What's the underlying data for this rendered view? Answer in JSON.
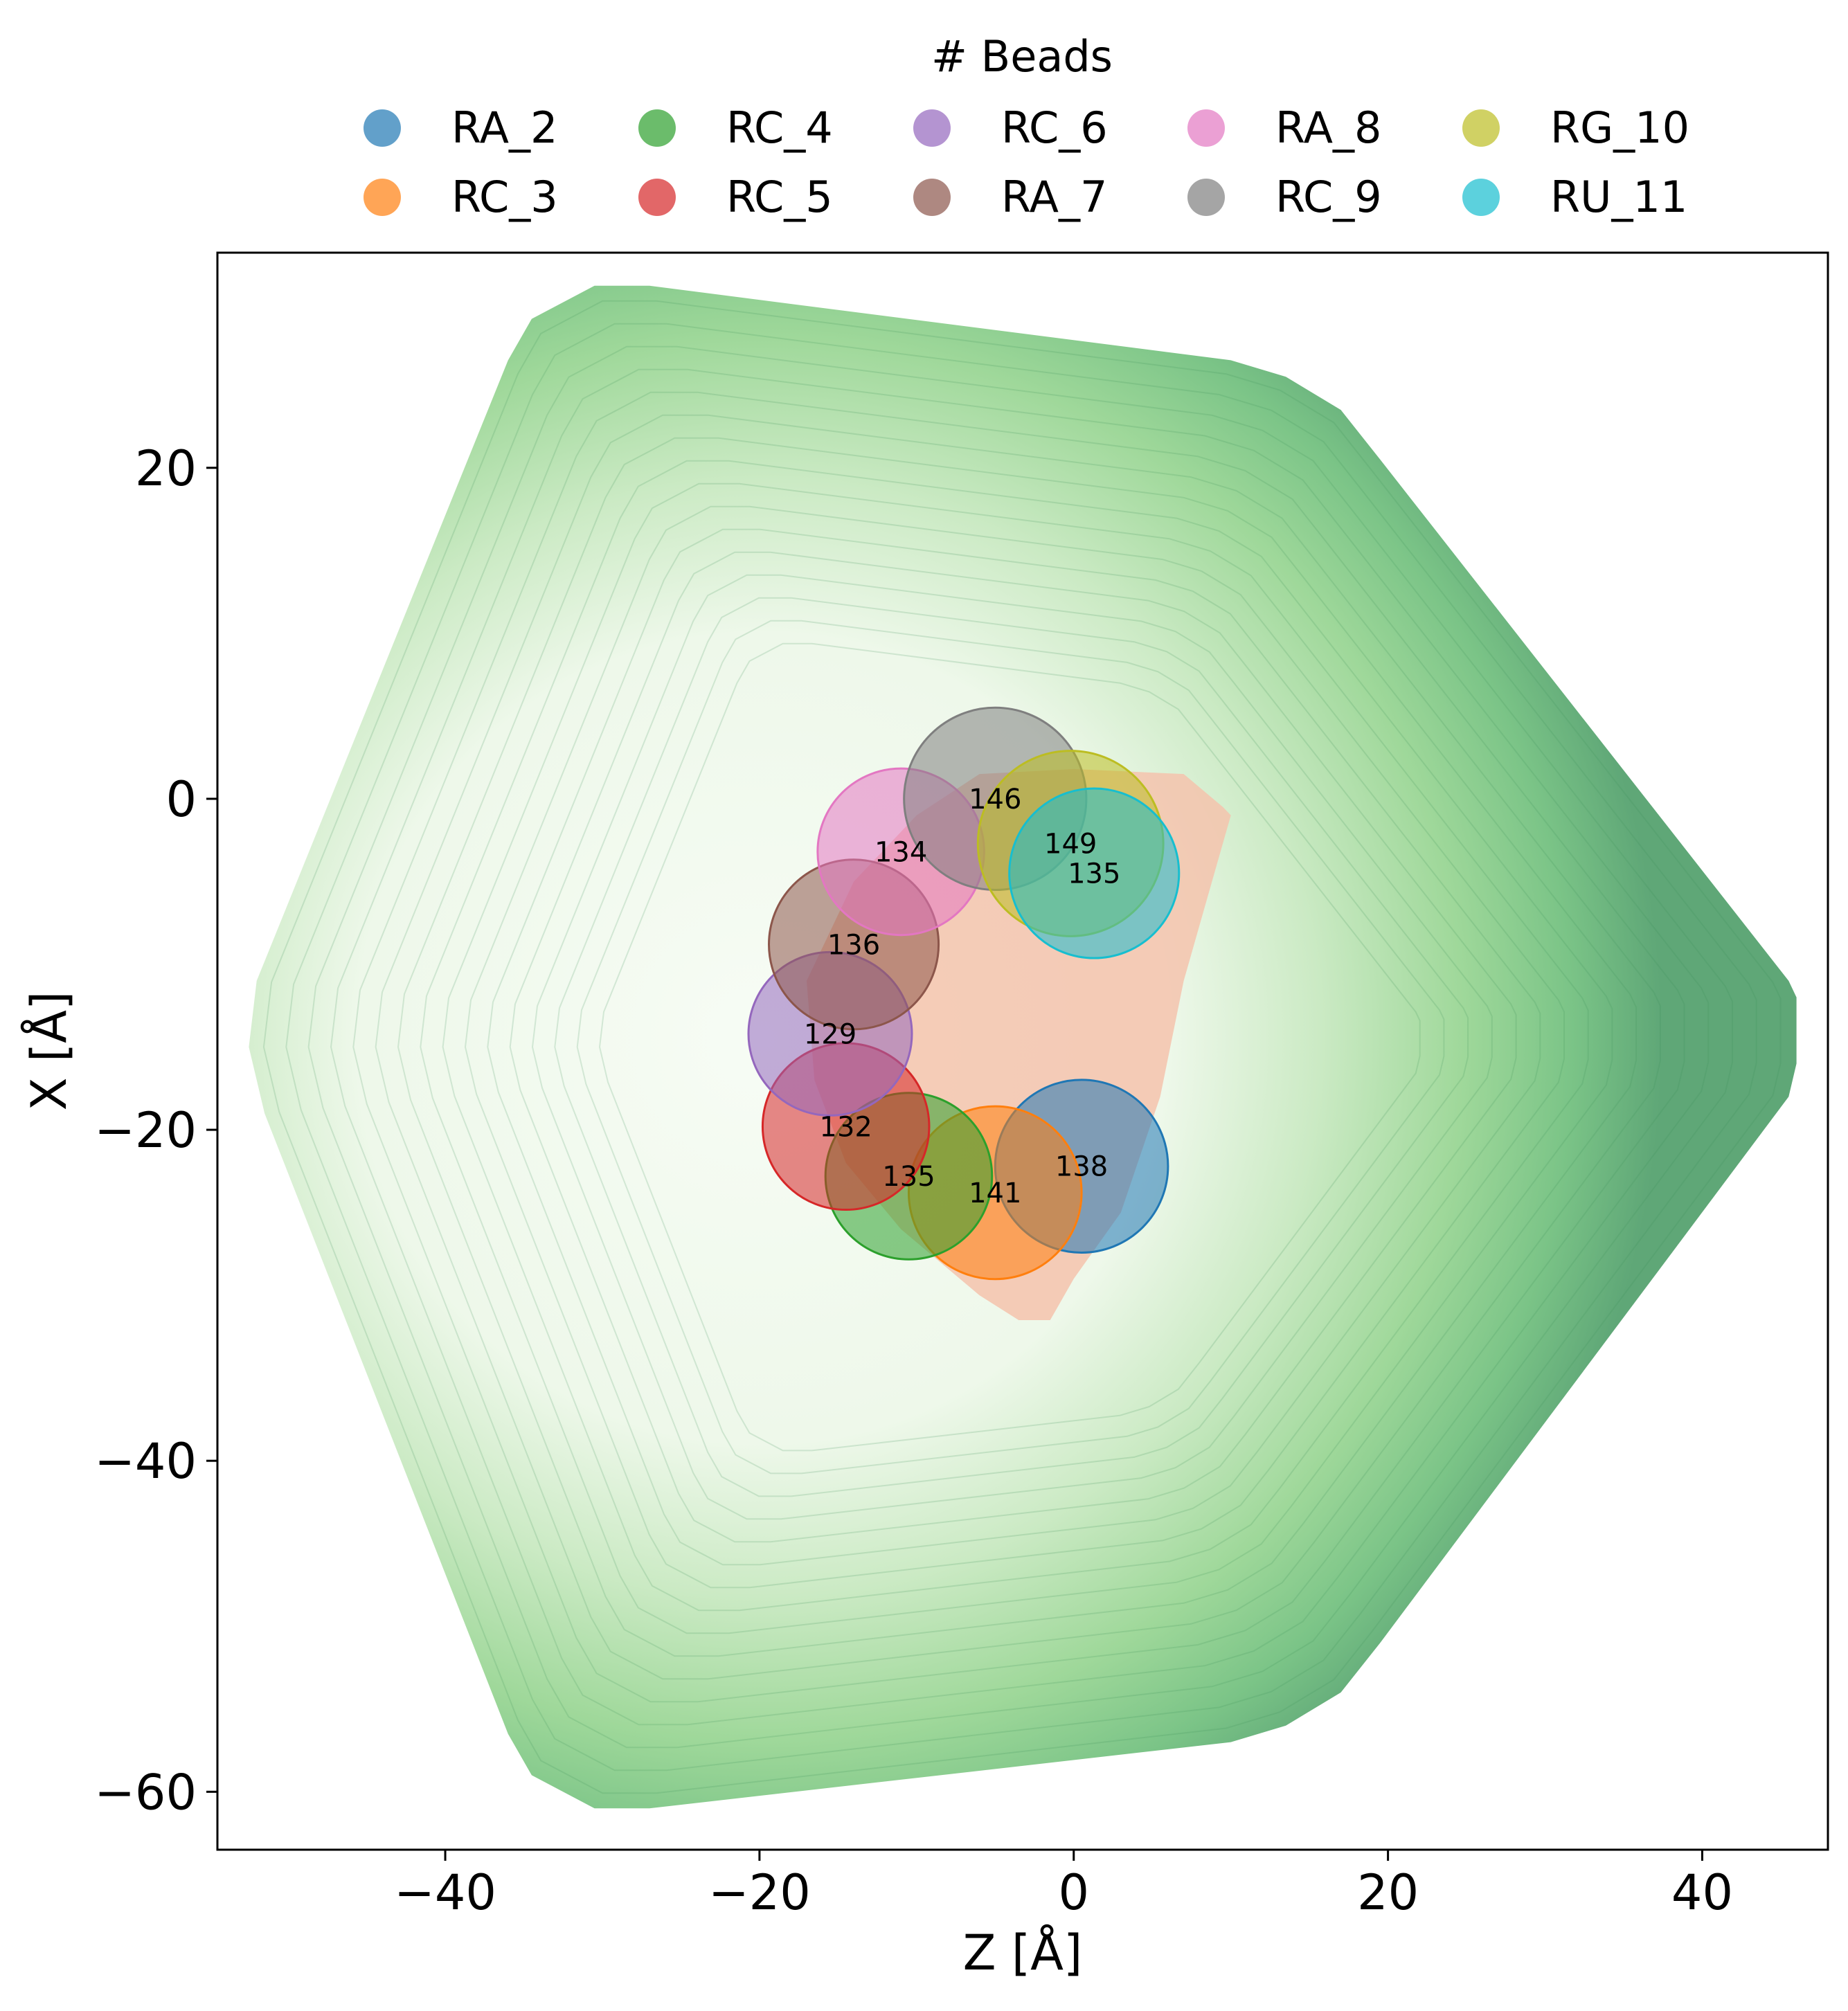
{
  "chart_data": {
    "type": "scatter",
    "xlabel": "Z [Å]",
    "ylabel": "X [Å]",
    "xlim": [
      -54.5,
      48
    ],
    "ylim": [
      -63.5,
      33
    ],
    "xticks": [
      -40,
      -20,
      0,
      20,
      40
    ],
    "yticks": [
      20,
      0,
      -20,
      -40,
      -60
    ],
    "xtick_labels": [
      "−40",
      "−20",
      "0",
      "20",
      "40"
    ],
    "ytick_labels": [
      "20",
      "0",
      "−20",
      "−40",
      "−60"
    ],
    "grid": false,
    "legend": {
      "title": "# Beads",
      "placement": "top-center, above plot",
      "columns": 5
    },
    "background_density": {
      "kind": "filled contour",
      "colormap": "Greens",
      "outline": [
        [
          -30.5,
          31
        ],
        [
          -34.5,
          29
        ],
        [
          -36,
          26.5
        ],
        [
          -52,
          -11
        ],
        [
          -52.5,
          -15
        ],
        [
          -51.5,
          -19
        ],
        [
          -36,
          -56.5
        ],
        [
          -34.5,
          -59
        ],
        [
          -30.5,
          -61
        ],
        [
          -27,
          -61
        ],
        [
          10,
          -57
        ],
        [
          13.5,
          -56
        ],
        [
          17,
          -54
        ],
        [
          19.5,
          -51
        ],
        [
          45.5,
          -18
        ],
        [
          46,
          -16
        ],
        [
          46,
          -12
        ],
        [
          45.5,
          -11
        ],
        [
          19.5,
          20.5
        ],
        [
          17,
          23.5
        ],
        [
          13.5,
          25.5
        ],
        [
          10,
          26.5
        ],
        [
          -27,
          31
        ]
      ]
    },
    "inner_density": {
      "kind": "filled contour",
      "color": "#f4c3ad",
      "outline": [
        [
          -14,
          -5
        ],
        [
          -10,
          -1
        ],
        [
          -6,
          1.5
        ],
        [
          0,
          1.8
        ],
        [
          7,
          1.5
        ],
        [
          9.5,
          -0.5
        ],
        [
          10,
          -1
        ],
        [
          8.5,
          -6
        ],
        [
          7,
          -11
        ],
        [
          5.5,
          -18
        ],
        [
          3,
          -25
        ],
        [
          0,
          -29
        ],
        [
          -1.5,
          -31.5
        ],
        [
          -3.5,
          -31.5
        ],
        [
          -6,
          -30
        ],
        [
          -11,
          -26
        ],
        [
          -14.5,
          -22
        ],
        [
          -16.5,
          -17
        ],
        [
          -17,
          -11
        ]
      ]
    },
    "series": [
      {
        "name": "RA_2",
        "z": 0.5,
        "x": -22.2,
        "r": 5.5,
        "value": 138,
        "color": "#1f77b4"
      },
      {
        "name": "RC_3",
        "z": -5.0,
        "x": -23.8,
        "r": 5.5,
        "value": 141,
        "color": "#ff7f0e"
      },
      {
        "name": "RC_4",
        "z": -10.5,
        "x": -22.8,
        "r": 5.3,
        "value": 135,
        "color": "#2ca02c"
      },
      {
        "name": "RC_5",
        "z": -14.5,
        "x": -19.8,
        "r": 5.3,
        "value": 132,
        "color": "#d62728"
      },
      {
        "name": "RC_6",
        "z": -15.5,
        "x": -14.2,
        "r": 5.2,
        "value": 129,
        "color": "#9467bd"
      },
      {
        "name": "RA_7",
        "z": -14.0,
        "x": -8.8,
        "r": 5.4,
        "value": 136,
        "color": "#8c564b"
      },
      {
        "name": "RA_8",
        "z": -11.0,
        "x": -3.2,
        "r": 5.3,
        "value": 134,
        "color": "#e377c2"
      },
      {
        "name": "RC_9",
        "z": -5.0,
        "x": 0.0,
        "r": 5.8,
        "value": 146,
        "color": "#7f7f7f"
      },
      {
        "name": "RG_10",
        "z": -0.2,
        "x": -2.7,
        "r": 5.9,
        "value": 149,
        "color": "#bcbd22"
      },
      {
        "name": "RU_11",
        "z": 1.3,
        "x": -4.5,
        "r": 5.4,
        "value": 135,
        "color": "#17becf"
      }
    ]
  }
}
